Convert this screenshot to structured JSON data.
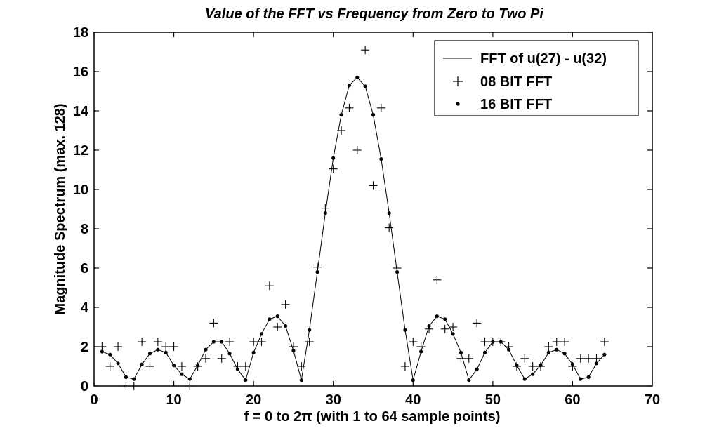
{
  "chart_data": {
    "type": "line",
    "title": "Value of the FFT vs Frequency from Zero to Two Pi",
    "xlabel": "f = 0 to 2π (with 1 to 64 sample points)",
    "ylabel": "Magnitude Spectrum (max. 128)",
    "xlim": [
      0,
      70
    ],
    "ylim": [
      0,
      18
    ],
    "xticks": [
      0,
      10,
      20,
      30,
      40,
      50,
      60,
      70
    ],
    "yticks": [
      0,
      2,
      4,
      6,
      8,
      10,
      12,
      14,
      16,
      18
    ],
    "grid": false,
    "legend_position": "top-right",
    "x": [
      1,
      2,
      3,
      4,
      5,
      6,
      7,
      8,
      9,
      10,
      11,
      12,
      13,
      14,
      15,
      16,
      17,
      18,
      19,
      20,
      21,
      22,
      23,
      24,
      25,
      26,
      27,
      28,
      29,
      30,
      31,
      32,
      33,
      34,
      35,
      36,
      37,
      38,
      39,
      40,
      41,
      42,
      43,
      44,
      45,
      46,
      47,
      48,
      49,
      50,
      51,
      52,
      53,
      54,
      55,
      56,
      57,
      58,
      59,
      60,
      61,
      62,
      63,
      64
    ],
    "series": [
      {
        "name": "FFT of u(27) - u(32)",
        "style": "line",
        "color": "#000000",
        "values": [
          1.75,
          1.6,
          1.15,
          0.45,
          0.35,
          1.1,
          1.65,
          1.85,
          1.7,
          1.05,
          0.6,
          0.35,
          1.05,
          1.85,
          2.25,
          2.25,
          1.65,
          0.85,
          0.3,
          1.7,
          2.65,
          3.4,
          3.55,
          3.05,
          1.8,
          0.3,
          2.85,
          5.8,
          8.8,
          11.6,
          13.8,
          15.3,
          15.7,
          15.25,
          13.8,
          11.55,
          8.8,
          5.8,
          2.85,
          0.3,
          1.75,
          3.05,
          3.55,
          3.4,
          2.65,
          1.7,
          0.3,
          0.85,
          1.7,
          2.25,
          2.25,
          1.85,
          1.05,
          0.35,
          0.6,
          1.05,
          1.7,
          1.85,
          1.65,
          1.1,
          0.35,
          0.45,
          1.15,
          1.6
        ]
      },
      {
        "name": "08 BIT FFT",
        "style": "plus",
        "color": "#000000",
        "values": [
          2.0,
          1.0,
          2.0,
          0.0,
          0.0,
          2.25,
          1.0,
          2.25,
          2.0,
          2.0,
          1.0,
          0.0,
          1.0,
          1.4,
          3.2,
          1.4,
          2.25,
          1.0,
          1.0,
          2.25,
          2.25,
          5.1,
          3.0,
          4.15,
          2.0,
          1.0,
          2.25,
          6.05,
          9.05,
          11.05,
          13.0,
          14.15,
          12.0,
          17.1,
          10.2,
          14.15,
          8.05,
          6.0,
          1.0,
          2.25,
          2.0,
          2.9,
          5.4,
          2.9,
          3.0,
          1.4,
          1.4,
          3.2,
          2.25,
          2.25,
          2.25,
          2.0,
          1.0,
          1.4,
          1.0,
          1.0,
          2.0,
          2.25,
          2.25,
          1.0,
          1.4,
          1.4,
          1.4,
          2.25
        ]
      },
      {
        "name": "16 BIT FFT",
        "style": "dot",
        "color": "#000000",
        "values": [
          1.75,
          1.6,
          1.15,
          0.45,
          0.35,
          1.1,
          1.65,
          1.85,
          1.7,
          1.05,
          0.6,
          0.35,
          1.05,
          1.85,
          2.25,
          2.25,
          1.65,
          0.85,
          0.3,
          1.7,
          2.65,
          3.4,
          3.55,
          3.05,
          1.8,
          0.3,
          2.85,
          5.8,
          8.8,
          11.6,
          13.8,
          15.3,
          15.7,
          15.25,
          13.8,
          11.55,
          8.8,
          5.8,
          2.85,
          0.3,
          1.75,
          3.05,
          3.55,
          3.4,
          2.65,
          1.7,
          0.3,
          0.85,
          1.7,
          2.25,
          2.25,
          1.85,
          1.05,
          0.35,
          0.6,
          1.05,
          1.7,
          1.85,
          1.65,
          1.1,
          0.35,
          0.45,
          1.15,
          1.6
        ]
      }
    ]
  }
}
